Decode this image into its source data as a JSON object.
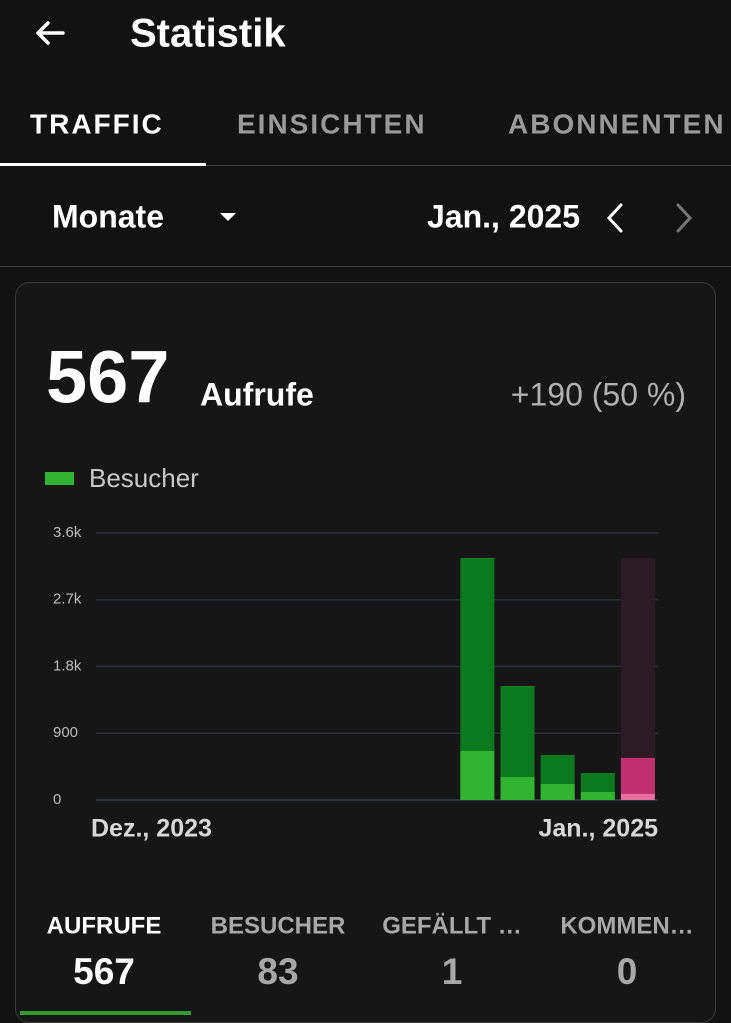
{
  "header": {
    "title": "Statistik"
  },
  "tabs": [
    "TRAFFIC",
    "EINSICHTEN",
    "ABONNENTEN"
  ],
  "period": {
    "label": "Monate",
    "date": "Jan., 2025"
  },
  "summary": {
    "value": 567,
    "unit": "Aufrufe",
    "change": "+190 (50 %)"
  },
  "chart_data": {
    "type": "bar",
    "categories": [
      "Dez., 2023",
      null,
      null,
      null,
      null,
      null,
      null,
      null,
      null,
      null,
      null,
      null,
      null,
      "Jan., 2025"
    ],
    "series": [
      {
        "color": "#0b7a1e",
        "selected_color": "#c2306f",
        "values": [
          null,
          null,
          null,
          null,
          null,
          null,
          null,
          null,
          null,
          3263,
          1537,
          607,
          364,
          567
        ]
      },
      {
        "name": "Besucher",
        "color": "#2fb52f",
        "selected_color": "#e86e9e",
        "values": [
          null,
          null,
          null,
          null,
          null,
          null,
          null,
          null,
          null,
          661,
          310,
          216,
          108,
          83
        ]
      }
    ],
    "selected_index": 13,
    "ylim": [
      0,
      3600
    ],
    "yticks": [
      0,
      900,
      {
        "value": 1800,
        "label": "1.8k"
      },
      {
        "value": 2700,
        "label": "2.7k"
      },
      {
        "value": 3600,
        "label": "3.6k"
      }
    ],
    "grid": true
  },
  "stats": [
    {
      "label": "AUFRUFE",
      "value": 567
    },
    {
      "label": "BESUCHER",
      "value": 83
    },
    {
      "label": "GEFÄLLT …",
      "value": 1
    },
    {
      "label": "KOMMEN…",
      "value": 0
    }
  ]
}
